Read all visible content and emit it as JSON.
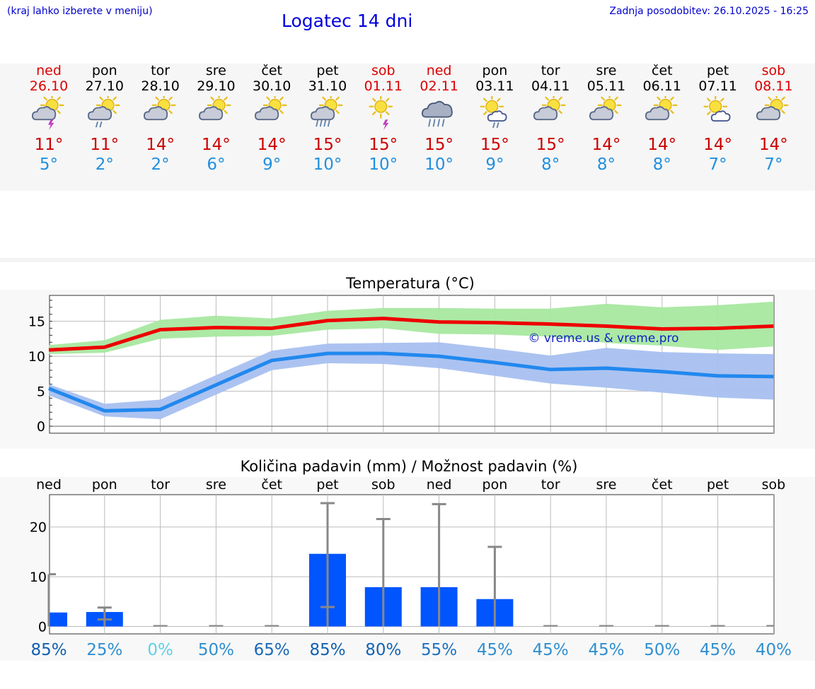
{
  "header": {
    "menu_hint": "(kraj lahko izberete v meniju)",
    "title": "Logatec 14 dni",
    "updated": "Zadnja posodobitev: 26.10.2025 - 16:25"
  },
  "days": [
    {
      "name": "ned",
      "date": "26.10",
      "weekend": true,
      "icon": "sun-cloud-thunder-icon",
      "max": "11°",
      "min": "5°"
    },
    {
      "name": "pon",
      "date": "27.10",
      "weekend": false,
      "icon": "sun-cloud-rain-icon",
      "max": "11°",
      "min": "2°"
    },
    {
      "name": "tor",
      "date": "28.10",
      "weekend": false,
      "icon": "sun-cloud-icon",
      "max": "14°",
      "min": "2°"
    },
    {
      "name": "sre",
      "date": "29.10",
      "weekend": false,
      "icon": "sun-cloud-icon",
      "max": "14°",
      "min": "6°"
    },
    {
      "name": "čet",
      "date": "30.10",
      "weekend": false,
      "icon": "sun-cloud-icon",
      "max": "14°",
      "min": "9°"
    },
    {
      "name": "pet",
      "date": "31.10",
      "weekend": false,
      "icon": "sun-cloud-heavy-rain-icon",
      "max": "15°",
      "min": "10°"
    },
    {
      "name": "sob",
      "date": "01.11",
      "weekend": true,
      "icon": "sun-thunder-icon",
      "max": "15°",
      "min": "10°"
    },
    {
      "name": "ned",
      "date": "02.11",
      "weekend": true,
      "icon": "cloud-heavy-rain-icon",
      "max": "15°",
      "min": "10°"
    },
    {
      "name": "pon",
      "date": "03.11",
      "weekend": false,
      "icon": "sun-white-cloud-rain-icon",
      "max": "15°",
      "min": "9°"
    },
    {
      "name": "tor",
      "date": "04.11",
      "weekend": false,
      "icon": "sun-cloud-icon",
      "max": "15°",
      "min": "8°"
    },
    {
      "name": "sre",
      "date": "05.11",
      "weekend": false,
      "icon": "sun-cloud-icon",
      "max": "14°",
      "min": "8°"
    },
    {
      "name": "čet",
      "date": "06.11",
      "weekend": false,
      "icon": "sun-cloud-icon",
      "max": "14°",
      "min": "8°"
    },
    {
      "name": "pet",
      "date": "07.11",
      "weekend": false,
      "icon": "sun-white-cloud-icon",
      "max": "14°",
      "min": "7°"
    },
    {
      "name": "sob",
      "date": "08.11",
      "weekend": true,
      "icon": "sun-cloud-icon",
      "max": "14°",
      "min": "7°"
    }
  ],
  "colors": {
    "max_line": "#ee0000",
    "max_band": "#a8e8a0",
    "min_line": "#2288ee",
    "min_band": "#a8c0f0",
    "bar": "#0055ff",
    "whisker": "#888888"
  },
  "chart_data": [
    {
      "type": "line",
      "title": "Temperatura (°C)",
      "watermark": "© vreme.us & vreme.pro",
      "ylim": [
        -1,
        18.7
      ],
      "yticks": [
        0,
        5,
        10,
        15
      ],
      "x": [
        0,
        1,
        2,
        3,
        4,
        5,
        6,
        7,
        8,
        9,
        10,
        11,
        12,
        13
      ],
      "series": [
        {
          "name": "max",
          "values": [
            10.9,
            11.3,
            13.8,
            14.1,
            14.0,
            15.1,
            15.4,
            14.9,
            14.8,
            14.6,
            14.3,
            13.9,
            14.0,
            14.3
          ],
          "band_low": [
            10.3,
            10.5,
            12.5,
            12.8,
            12.9,
            13.8,
            14.0,
            13.2,
            13.1,
            12.8,
            11.9,
            11.5,
            10.9,
            11.4
          ],
          "band_high": [
            11.6,
            12.3,
            15.2,
            15.8,
            15.4,
            16.5,
            16.9,
            16.9,
            16.8,
            16.8,
            17.5,
            17.0,
            17.3,
            17.8
          ]
        },
        {
          "name": "min",
          "values": [
            5.4,
            2.2,
            2.4,
            5.9,
            9.4,
            10.4,
            10.4,
            10.0,
            9.1,
            8.1,
            8.3,
            7.8,
            7.2,
            7.1
          ],
          "band_low": [
            4.4,
            1.4,
            1.0,
            4.5,
            8.0,
            9.0,
            8.9,
            8.3,
            7.2,
            6.1,
            5.5,
            4.8,
            4.1,
            3.8
          ],
          "band_high": [
            6.0,
            3.2,
            3.8,
            7.3,
            10.8,
            11.8,
            11.9,
            12.0,
            11.1,
            10.1,
            11.2,
            10.6,
            10.4,
            10.3
          ]
        }
      ]
    },
    {
      "type": "bar",
      "title": "Količina padavin (mm) / Možnost padavin (%)",
      "ylim": [
        -1.5,
        26.5
      ],
      "yticks": [
        0,
        10,
        20
      ],
      "categories": [
        "ned",
        "pon",
        "tor",
        "sre",
        "čet",
        "pet",
        "sob",
        "ned",
        "pon",
        "tor",
        "sre",
        "čet",
        "pet",
        "sob"
      ],
      "values": [
        2.8,
        2.9,
        0,
        0,
        0,
        14.6,
        7.9,
        7.9,
        5.5,
        0,
        0,
        0,
        0,
        0
      ],
      "err_low": [
        0,
        1.4,
        0,
        0,
        0,
        3.9,
        0,
        0,
        0,
        0,
        0,
        0,
        0,
        0
      ],
      "err_high": [
        10.5,
        3.8,
        0,
        0,
        0,
        24.8,
        21.6,
        24.6,
        16.0,
        0,
        0,
        0,
        0,
        0
      ],
      "probabilities": [
        "85%",
        "25%",
        "0%",
        "50%",
        "65%",
        "85%",
        "80%",
        "55%",
        "45%",
        "45%",
        "45%",
        "50%",
        "45%",
        "40%"
      ],
      "prob_colors": [
        "#1060b0",
        "#2f8fd0",
        "#5fd0e8",
        "#2f8fd0",
        "#1868b8",
        "#1060b0",
        "#1464b4",
        "#1c70c0",
        "#2f8fd0",
        "#2f8fd0",
        "#2f8fd0",
        "#2f8fd0",
        "#2f8fd0",
        "#2f8fd0"
      ]
    }
  ]
}
